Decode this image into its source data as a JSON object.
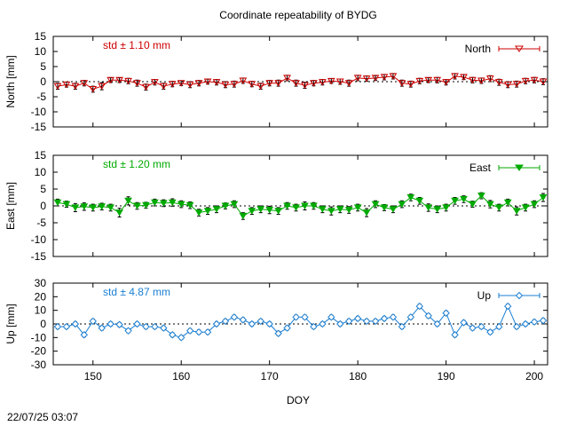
{
  "title": "Coordinate repeatability of BYDG",
  "xlabel": "DOY",
  "timestamp": "22/07/25 03:07",
  "chart_data": [
    {
      "type": "line",
      "panel": "north",
      "ylabel": "North [mm]",
      "std_label": "std ± 1.10 mm",
      "legend": "North",
      "legend_position": "top-right",
      "color": "#cc0000",
      "error_color": "#000000",
      "marker": "triangle-down",
      "xlim": [
        145.5,
        201.5
      ],
      "ylim": [
        -15,
        15
      ],
      "yticks": [
        -15,
        -10,
        -5,
        0,
        5,
        10,
        15
      ],
      "x": [
        146,
        147,
        148,
        149,
        150,
        151,
        152,
        153,
        154,
        155,
        156,
        157,
        158,
        159,
        160,
        161,
        162,
        163,
        164,
        165,
        166,
        167,
        168,
        169,
        170,
        171,
        172,
        173,
        174,
        175,
        176,
        177,
        178,
        179,
        180,
        181,
        182,
        183,
        184,
        185,
        186,
        187,
        188,
        189,
        190,
        191,
        192,
        193,
        194,
        195,
        196,
        197,
        198,
        199,
        200,
        201
      ],
      "y": [
        -1.5,
        -1.0,
        -1.5,
        -0.5,
        -2.5,
        -1.5,
        0.5,
        0.5,
        0.2,
        -0.5,
        -1.8,
        -0.2,
        -1.5,
        -0.8,
        -0.5,
        -1.0,
        -0.5,
        0.0,
        -0.2,
        -1.0,
        -0.8,
        0.3,
        -0.8,
        -1.5,
        -0.5,
        -0.5,
        1.2,
        -0.5,
        -1.2,
        -0.5,
        -0.2,
        0.2,
        0.0,
        -0.5,
        1.2,
        1.0,
        1.2,
        1.5,
        1.8,
        -0.5,
        -0.8,
        0.2,
        0.5,
        0.5,
        -0.2,
        1.8,
        1.5,
        0.5,
        0.3,
        1.0,
        -0.2,
        -1.0,
        -0.8,
        0.2,
        0.5,
        0.0
      ],
      "err": [
        1.0,
        0.8,
        1.0,
        0.9,
        1.0,
        1.2,
        0.8,
        0.8,
        0.9,
        1.0,
        1.0,
        0.9,
        1.0,
        0.9,
        0.8,
        1.0,
        0.9,
        0.8,
        0.9,
        1.0,
        1.0,
        0.9,
        0.9,
        1.0,
        0.9,
        1.0,
        0.9,
        1.0,
        1.0,
        0.9,
        0.9,
        0.8,
        0.9,
        1.0,
        0.9,
        0.9,
        0.8,
        0.9,
        0.9,
        1.0,
        1.0,
        0.9,
        0.8,
        0.9,
        0.9,
        0.9,
        0.8,
        0.9,
        0.9,
        1.0,
        1.0,
        1.0,
        1.0,
        0.9,
        0.9,
        1.0
      ]
    },
    {
      "type": "line",
      "panel": "east",
      "ylabel": "East [mm]",
      "std_label": "std ± 1.20 mm",
      "legend": "East",
      "legend_position": "top-right",
      "color": "#00aa00",
      "error_color": "#000000",
      "marker": "triangle-down-filled",
      "xlim": [
        145.5,
        201.5
      ],
      "ylim": [
        -15,
        15
      ],
      "yticks": [
        -15,
        -10,
        -5,
        0,
        5,
        10,
        15
      ],
      "x": [
        146,
        147,
        148,
        149,
        150,
        151,
        152,
        153,
        154,
        155,
        156,
        157,
        158,
        159,
        160,
        161,
        162,
        163,
        164,
        165,
        166,
        167,
        168,
        169,
        170,
        171,
        172,
        173,
        174,
        175,
        176,
        177,
        178,
        179,
        180,
        181,
        182,
        183,
        184,
        185,
        186,
        187,
        188,
        189,
        190,
        191,
        192,
        193,
        194,
        195,
        196,
        197,
        198,
        199,
        200,
        201
      ],
      "y": [
        1.0,
        0.5,
        -0.5,
        -0.2,
        -0.5,
        -0.2,
        -0.5,
        -2.0,
        1.5,
        0.0,
        0.2,
        1.0,
        0.8,
        1.0,
        0.5,
        0.2,
        -2.0,
        -1.5,
        -1.0,
        0.0,
        0.5,
        -3.0,
        -1.5,
        -1.0,
        -1.2,
        -1.5,
        0.0,
        -0.5,
        0.0,
        0.0,
        -1.0,
        -1.5,
        -1.0,
        -1.2,
        -0.5,
        -2.0,
        0.5,
        -0.5,
        -1.0,
        0.5,
        2.5,
        1.5,
        -0.5,
        -1.0,
        -0.5,
        1.5,
        2.0,
        0.5,
        3.0,
        0.5,
        -0.5,
        1.0,
        -1.5,
        -0.5,
        0.5,
        2.5
      ],
      "err": [
        1.0,
        0.9,
        1.2,
        1.1,
        1.0,
        1.0,
        1.0,
        1.3,
        1.2,
        1.0,
        0.9,
        1.0,
        1.0,
        1.1,
        1.0,
        1.0,
        1.0,
        1.0,
        1.0,
        0.9,
        1.0,
        1.0,
        1.0,
        1.0,
        1.1,
        1.0,
        1.0,
        1.0,
        1.2,
        1.0,
        1.0,
        1.2,
        1.0,
        1.0,
        1.0,
        1.2,
        1.0,
        0.9,
        1.0,
        1.0,
        1.0,
        1.0,
        1.1,
        1.0,
        1.0,
        1.0,
        1.0,
        0.9,
        0.9,
        1.1,
        1.0,
        1.0,
        1.2,
        1.0,
        1.0,
        1.2
      ]
    },
    {
      "type": "line",
      "panel": "up",
      "ylabel": "Up [mm]",
      "std_label": "std ± 4.87 mm",
      "legend": "Up",
      "legend_position": "top-right",
      "color": "#1a7fd4",
      "error_color": "#000000",
      "marker": "diamond-open",
      "xlim": [
        145.5,
        201.5
      ],
      "ylim": [
        -30,
        30
      ],
      "yticks": [
        -30,
        -20,
        -10,
        0,
        10,
        20,
        30
      ],
      "x": [
        146,
        147,
        148,
        149,
        150,
        151,
        152,
        153,
        154,
        155,
        156,
        157,
        158,
        159,
        160,
        161,
        162,
        163,
        164,
        165,
        166,
        167,
        168,
        169,
        170,
        171,
        172,
        173,
        174,
        175,
        176,
        177,
        178,
        179,
        180,
        181,
        182,
        183,
        184,
        185,
        186,
        187,
        188,
        189,
        190,
        191,
        192,
        193,
        194,
        195,
        196,
        197,
        198,
        199,
        200,
        201
      ],
      "y": [
        -2.0,
        -2.0,
        0.0,
        -8.0,
        2.0,
        -3.0,
        0.0,
        -0.5,
        -5.0,
        0.0,
        -2.0,
        -2.0,
        -3.0,
        -8.0,
        -10.0,
        -5.0,
        -6.0,
        -6.0,
        0.0,
        2.0,
        5.0,
        3.0,
        0.0,
        2.0,
        0.0,
        -7.0,
        -3.0,
        5.0,
        5.0,
        -2.0,
        0.0,
        5.0,
        0.0,
        2.0,
        4.0,
        2.0,
        2.0,
        4.0,
        5.0,
        -2.0,
        5.0,
        13.0,
        6.0,
        0.0,
        8.0,
        -8.0,
        1.0,
        -3.0,
        -2.0,
        -6.0,
        -2.0,
        13.0,
        -2.0,
        0.0,
        1.5,
        2.5
      ],
      "err": [
        1.5,
        1.5,
        1.5,
        1.5,
        1.5,
        1.5,
        1.5,
        1.5,
        1.5,
        1.5,
        1.5,
        1.5,
        1.5,
        1.5,
        1.5,
        1.5,
        1.5,
        1.5,
        1.5,
        1.5,
        1.5,
        1.5,
        1.5,
        1.5,
        1.5,
        1.5,
        1.5,
        1.5,
        1.5,
        1.5,
        1.5,
        1.5,
        1.5,
        1.5,
        1.5,
        1.5,
        1.5,
        1.5,
        1.5,
        1.5,
        1.5,
        1.5,
        1.5,
        1.5,
        1.5,
        1.5,
        1.5,
        1.5,
        1.5,
        1.5,
        1.5,
        1.5,
        1.5,
        1.5,
        1.5,
        1.5
      ]
    }
  ],
  "xticks": [
    150,
    160,
    170,
    180,
    190,
    200
  ]
}
